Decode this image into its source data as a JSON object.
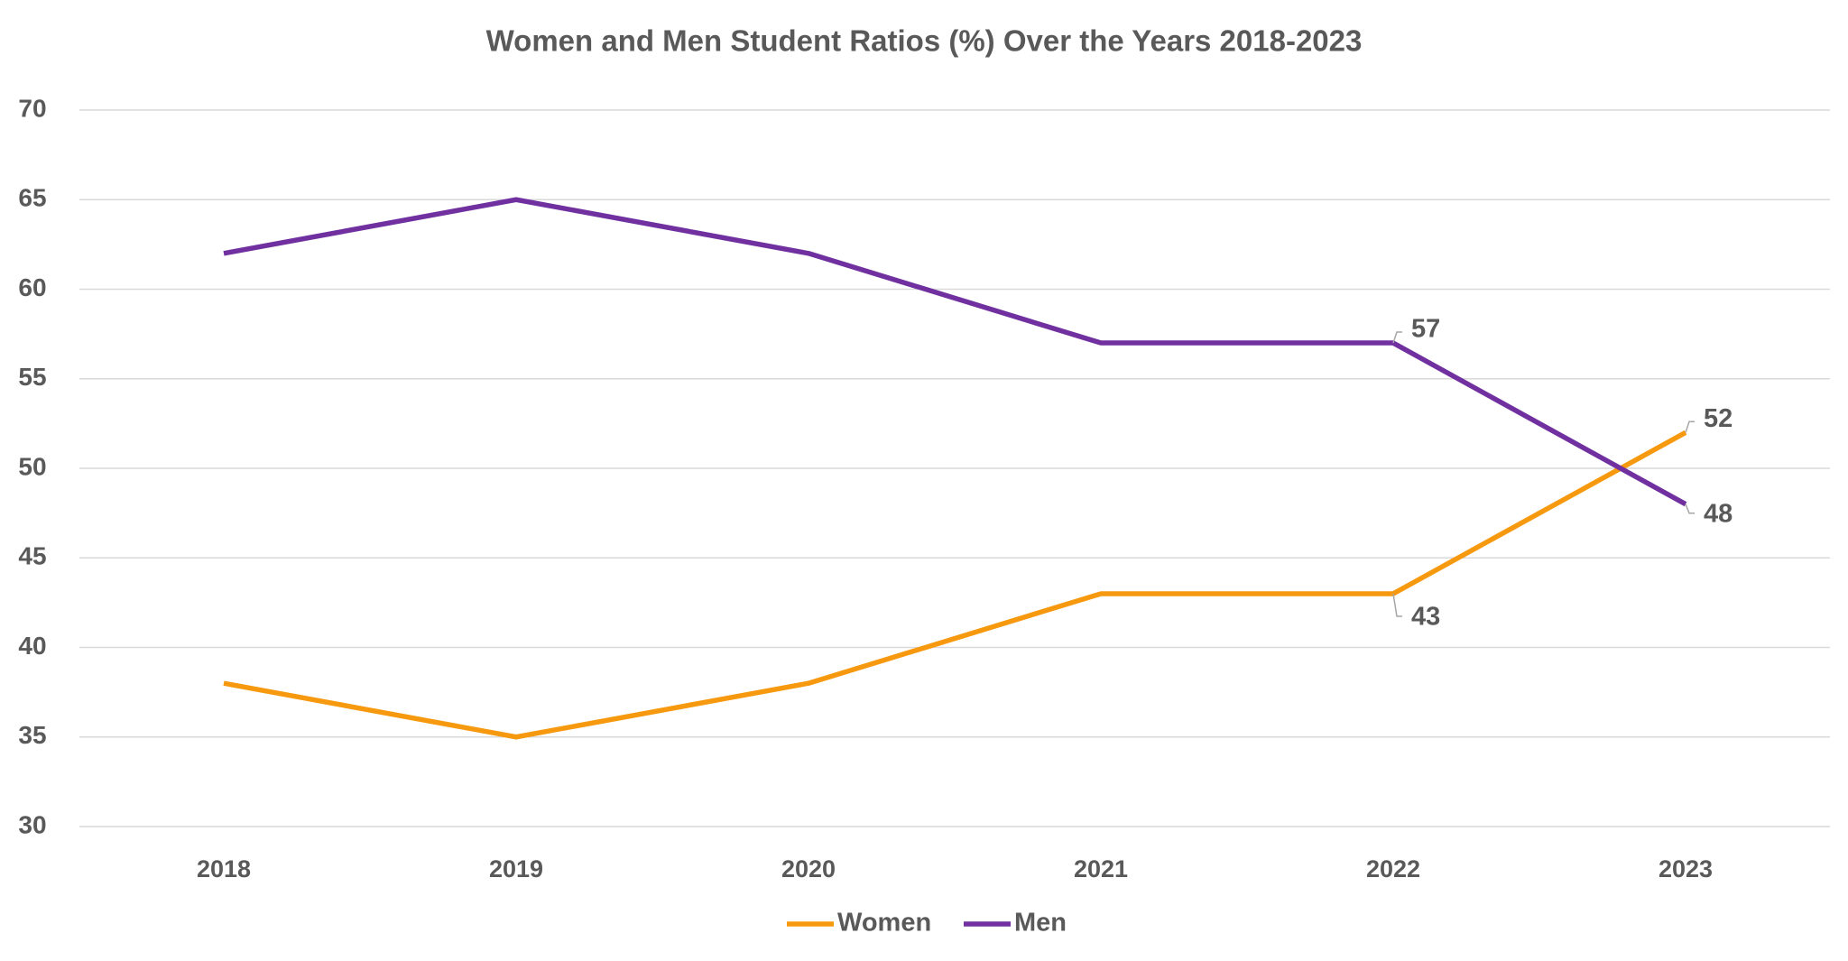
{
  "chart_data": {
    "type": "line",
    "title": "Women and Men Student Ratios (%) Over the Years 2018-2023",
    "categories": [
      "2018",
      "2019",
      "2020",
      "2021",
      "2022",
      "2023"
    ],
    "series": [
      {
        "name": "Women",
        "color": "#f7990f",
        "values": [
          38,
          35,
          38,
          43,
          43,
          52
        ],
        "value_labels": [
          null,
          null,
          null,
          null,
          "43",
          "52"
        ]
      },
      {
        "name": "Men",
        "color": "#7030a0",
        "values": [
          62,
          65,
          62,
          57,
          57,
          48
        ],
        "value_labels": [
          null,
          null,
          null,
          null,
          "57",
          "48"
        ]
      }
    ],
    "ylim": [
      30,
      70
    ],
    "yticks": [
      30,
      35,
      40,
      45,
      50,
      55,
      60,
      65,
      70
    ],
    "grid": true,
    "legend": "bottom"
  }
}
